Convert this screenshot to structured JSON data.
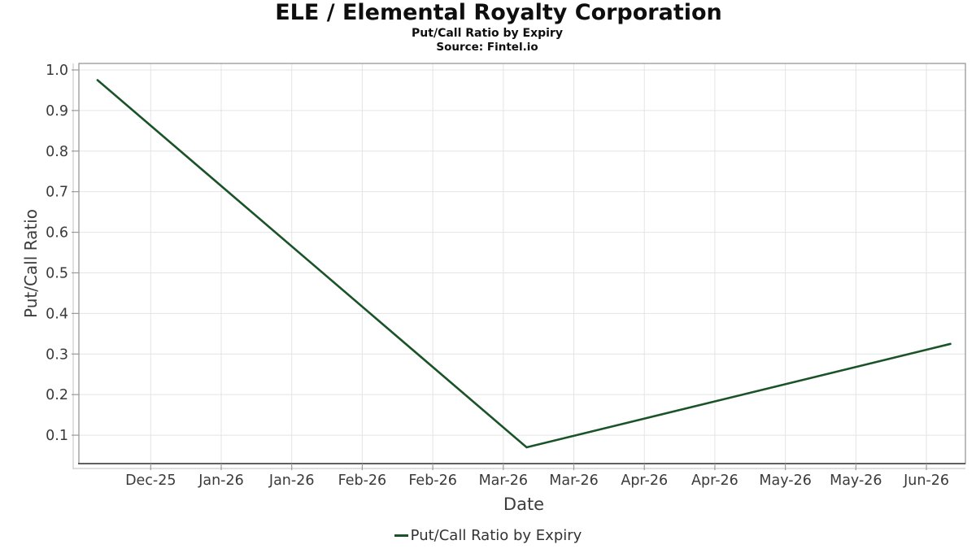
{
  "chart_data": {
    "type": "line",
    "title": "ELE / Elemental Royalty Corporation",
    "subtitle": "Put/Call Ratio by Expiry",
    "source": "Source: Fintel.io",
    "xlabel": "Date",
    "ylabel": "Put/Call Ratio",
    "legend": {
      "label": "Put/Call Ratio by Expiry",
      "position": "bottom-center"
    },
    "grid": true,
    "x_tick_labels": [
      "Dec-25",
      "Jan-26",
      "Jan-26",
      "Feb-26",
      "Feb-26",
      "Mar-26",
      "Mar-26",
      "Apr-26",
      "Apr-26",
      "May-26",
      "May-26",
      "Jun-26"
    ],
    "x_axis_tick_span": {
      "first_frac": 0.081,
      "last_frac": 0.956
    },
    "y_tick_labels": [
      "0.1",
      "0.2",
      "0.3",
      "0.4",
      "0.5",
      "0.6",
      "0.7",
      "0.8",
      "0.9",
      "1.0"
    ],
    "y_tick_values": [
      0.1,
      0.2,
      0.3,
      0.4,
      0.5,
      0.6,
      0.7,
      0.8,
      0.9,
      1.0
    ],
    "ylim": [
      0.03,
      1.016
    ],
    "series": [
      {
        "name": "Put/Call Ratio by Expiry",
        "color": "#1b5329",
        "points": [
          {
            "x_frac": 0.021,
            "y": 0.975
          },
          {
            "x_frac": 0.505,
            "y": 0.07
          },
          {
            "x_frac": 0.983,
            "y": 0.325
          }
        ]
      }
    ]
  },
  "style": {
    "line_color": "#1b5329",
    "grid_color": "#e4e4e4",
    "spine_color": "#909090",
    "bottom_spine_color": "#4d4d4d",
    "offset_line_color": "#cccccc",
    "tick_color": "#9a9a9a",
    "tick_label_color": "#3a3a3a",
    "axis_label_color": "#3c3c3c",
    "title_color": "#0e0e0e",
    "background": "#ffffff"
  }
}
